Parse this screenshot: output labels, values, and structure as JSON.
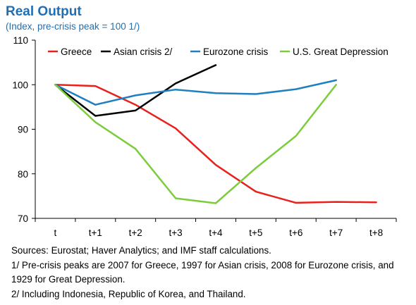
{
  "chart_data": {
    "type": "line",
    "title": "Real Output",
    "subtitle": "(Index, pre-crisis peak = 100 1/)",
    "categories": [
      "t",
      "t+1",
      "t+2",
      "t+3",
      "t+4",
      "t+5",
      "t+6",
      "t+7",
      "t+8"
    ],
    "ylim": [
      70,
      110
    ],
    "yticks": [
      70,
      80,
      90,
      100,
      110
    ],
    "grid": false,
    "legend_position": "top",
    "series": [
      {
        "name": "Greece",
        "color": "#e8211d",
        "values": [
          100,
          99.7,
          95.5,
          90.2,
          82,
          76,
          73.5,
          73.7,
          73.6
        ]
      },
      {
        "name": "Asian crisis 2/",
        "color": "#000000",
        "values": [
          100,
          93,
          94.2,
          100.3,
          104.4,
          null,
          null,
          null,
          null
        ]
      },
      {
        "name": "Eurozone crisis",
        "color": "#1f7fbf",
        "values": [
          100,
          95.5,
          97.6,
          98.9,
          98.1,
          97.9,
          99,
          101,
          null
        ]
      },
      {
        "name": "U.S. Great Depression",
        "color": "#7ccc3c",
        "values": [
          100,
          91.6,
          85.6,
          74.5,
          73.4,
          81.3,
          88.5,
          100,
          null
        ]
      }
    ]
  },
  "notes": {
    "sources": "Sources: Eurostat; Haver Analytics; and IMF staff calculations.",
    "note1": "1/ Pre-crisis peaks are 2007 for Greece, 1997 for Asian crisis, 2008 for Eurozone crisis, and 1929 for Great Depression.",
    "note2": "2/ Including Indonesia, Republic of Korea, and Thailand."
  }
}
